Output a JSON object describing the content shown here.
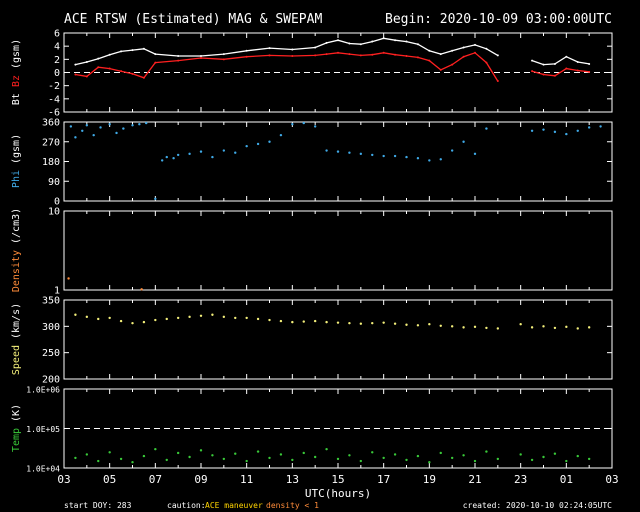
{
  "header": {
    "title": "ACE RTSW (Estimated) MAG & SWEPAM",
    "begin": "Begin: 2020-10-09 03:00:00UTC"
  },
  "footer": {
    "start_doy": "start DOY: 283",
    "caution_prefix": "caution:",
    "caution_maneuver": "ACE maneuver",
    "caution_density": "density < 1",
    "created": "created: 2020-10-10 02:24:05UTC"
  },
  "colors": {
    "background": "#000000",
    "axes": "#ffffff",
    "bt": "#ffffff",
    "bz": "#ff2020",
    "phi": "#3fa9e6",
    "density": "#ff8c3a",
    "speed": "#f2ee7a",
    "temp": "#39c939",
    "maneuver": "#ffd400"
  },
  "chart_data": [
    {
      "type": "line",
      "panel": "mag",
      "ylabel": {
        "bt": "Bt",
        "bz": "Bz",
        "unit": "(gsm)"
      },
      "ylim": [
        -6,
        6
      ],
      "yticks": [
        "6",
        "4",
        "2",
        "0",
        "-2",
        "-4",
        "-6"
      ],
      "reference_line": 0,
      "series": [
        {
          "name": "Bt",
          "x": [
            3.5,
            4,
            4.5,
            5,
            5.5,
            6,
            6.5,
            7,
            8,
            9,
            10,
            11,
            12,
            13,
            14,
            14.5,
            15,
            15.5,
            16,
            16.5,
            17,
            17.5,
            18,
            18.5,
            19,
            19.5,
            20,
            20.5,
            21,
            21.5,
            22,
            23.5,
            24,
            24.5,
            25,
            25.5,
            26
          ],
          "y": [
            1.2,
            1.6,
            2.1,
            2.7,
            3.2,
            3.4,
            3.6,
            2.8,
            2.5,
            2.5,
            2.8,
            3.3,
            3.7,
            3.5,
            3.8,
            4.5,
            4.9,
            4.4,
            4.3,
            4.7,
            5.2,
            4.9,
            4.7,
            4.3,
            3.3,
            2.8,
            3.3,
            3.8,
            4.2,
            3.6,
            2.6,
            1.8,
            1.2,
            1.3,
            2.4,
            1.6,
            1.3
          ]
        },
        {
          "name": "Bz",
          "x": [
            3.5,
            4,
            4.5,
            5,
            5.5,
            6,
            6.5,
            7,
            8,
            9,
            10,
            11,
            12,
            13,
            14,
            14.5,
            15,
            15.5,
            16,
            16.5,
            17,
            17.5,
            18,
            18.5,
            19,
            19.5,
            20,
            20.5,
            21,
            21.5,
            22,
            23.5,
            24,
            24.5,
            25,
            25.5,
            26
          ],
          "y": [
            -0.3,
            -0.6,
            0.8,
            0.6,
            0.2,
            -0.2,
            -0.8,
            1.5,
            1.8,
            2.2,
            2.0,
            2.4,
            2.6,
            2.5,
            2.6,
            2.8,
            3.0,
            2.8,
            2.6,
            2.7,
            3.0,
            2.7,
            2.5,
            2.3,
            1.8,
            0.4,
            1.2,
            2.4,
            3.0,
            1.5,
            -1.3,
            0.2,
            -0.3,
            -0.5,
            0.6,
            0.3,
            0.1
          ]
        }
      ]
    },
    {
      "type": "scatter",
      "panel": "phi",
      "ylabel": {
        "name": "Phi",
        "unit": "(gsm)"
      },
      "ylim": [
        0,
        360
      ],
      "yticks": [
        "360",
        "270",
        "180",
        "90",
        "0"
      ],
      "series": [
        {
          "name": "Phi",
          "x": [
            3.3,
            3.5,
            3.8,
            4,
            4.3,
            4.6,
            5,
            5.3,
            5.6,
            6,
            6.3,
            6.6,
            7,
            7.3,
            7.5,
            7.8,
            8,
            8.5,
            9,
            9.5,
            10,
            10.5,
            11,
            11.5,
            12,
            12.5,
            13,
            13.5,
            14,
            14.5,
            15,
            15.5,
            16,
            16.5,
            17,
            17.5,
            18,
            18.5,
            19,
            19.5,
            20,
            20.5,
            21,
            21.5,
            23.5,
            24,
            24.5,
            25,
            25.5,
            26,
            26.5
          ],
          "y": [
            340,
            290,
            320,
            345,
            300,
            335,
            350,
            310,
            330,
            345,
            350,
            355,
            10,
            185,
            200,
            195,
            210,
            215,
            225,
            200,
            230,
            220,
            250,
            260,
            270,
            300,
            350,
            355,
            340,
            230,
            225,
            220,
            215,
            210,
            205,
            205,
            200,
            195,
            185,
            190,
            230,
            270,
            215,
            330,
            320,
            325,
            315,
            305,
            320,
            335,
            340
          ]
        }
      ]
    },
    {
      "type": "scatter",
      "panel": "density",
      "ylabel": {
        "name": "Density",
        "unit": "(/cm3)"
      },
      "yscale": "log",
      "ylim": [
        1,
        10
      ],
      "yticks": [
        "10",
        "1"
      ],
      "series": [
        {
          "name": "Density",
          "x": [
            3.2,
            6.4
          ],
          "y": [
            1.4,
            1.02
          ]
        }
      ]
    },
    {
      "type": "scatter",
      "panel": "speed",
      "ylabel": {
        "name": "Speed",
        "unit": "(km/s)"
      },
      "ylim": [
        200,
        350
      ],
      "yticks": [
        "350",
        "300",
        "250",
        "200"
      ],
      "series": [
        {
          "name": "Speed",
          "x": [
            3.5,
            4,
            4.5,
            5,
            5.5,
            6,
            6.5,
            7,
            7.5,
            8,
            8.5,
            9,
            9.5,
            10,
            10.5,
            11,
            11.5,
            12,
            12.5,
            13,
            13.5,
            14,
            14.5,
            15,
            15.5,
            16,
            16.5,
            17,
            17.5,
            18,
            18.5,
            19,
            19.5,
            20,
            20.5,
            21,
            21.5,
            22,
            23,
            23.5,
            24,
            24.5,
            25,
            25.5,
            26
          ],
          "y": [
            322,
            318,
            314,
            316,
            310,
            306,
            308,
            312,
            314,
            316,
            318,
            320,
            322,
            318,
            316,
            316,
            314,
            312,
            310,
            308,
            309,
            310,
            308,
            307,
            306,
            305,
            306,
            307,
            305,
            303,
            302,
            304,
            301,
            300,
            298,
            299,
            297,
            296,
            304,
            298,
            300,
            297,
            299,
            296,
            298
          ]
        }
      ]
    },
    {
      "type": "scatter",
      "panel": "temp",
      "ylabel": {
        "name": "Temp",
        "unit": "(K)"
      },
      "yscale": "log",
      "ylim": [
        10000,
        1000000
      ],
      "yticks": [
        "1.0E+06",
        "1.0E+05",
        "1.0E+04"
      ],
      "reference_line": 100000,
      "series": [
        {
          "name": "Temp",
          "x": [
            3.5,
            4,
            4.5,
            5,
            5.5,
            6,
            6.5,
            7,
            7.5,
            8,
            8.5,
            9,
            9.5,
            10,
            10.5,
            11,
            11.5,
            12,
            12.5,
            13,
            13.5,
            14,
            14.5,
            15,
            15.5,
            16,
            16.5,
            17,
            17.5,
            18,
            18.5,
            19,
            19.5,
            20,
            20.5,
            21,
            21.5,
            22,
            23,
            23.5,
            24,
            24.5,
            25,
            25.5,
            26
          ],
          "y": [
            18000,
            22000,
            15000,
            25000,
            17000,
            14000,
            20000,
            30000,
            16000,
            24000,
            19000,
            28000,
            21000,
            17000,
            23000,
            15000,
            26000,
            18000,
            22000,
            16000,
            24000,
            19000,
            30000,
            17000,
            21000,
            15000,
            25000,
            18000,
            22000,
            16000,
            20000,
            14000,
            24000,
            18000,
            21000,
            15000,
            26000,
            17000,
            22000,
            16000,
            19000,
            23000,
            15000,
            20000,
            17000
          ]
        }
      ]
    }
  ],
  "x_axis": {
    "label": "UTC(hours)",
    "range": [
      3,
      27
    ],
    "ticks": [
      "03",
      "05",
      "07",
      "09",
      "11",
      "13",
      "15",
      "17",
      "19",
      "21",
      "23",
      "01",
      "03"
    ]
  }
}
